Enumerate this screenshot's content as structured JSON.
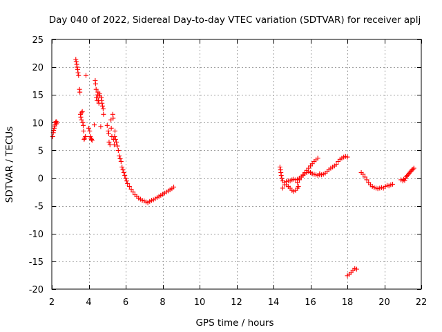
{
  "chart_data": {
    "type": "scatter",
    "title": "Day 040 of 2022, Sidereal Day-to-day VTEC variation (SDTVAR) for receiver aplj",
    "xlabel": "GPS time / hours",
    "ylabel": "SDTVAR / TECUs",
    "xlim": [
      2,
      22
    ],
    "ylim": [
      -20,
      25
    ],
    "xticks": [
      2,
      4,
      6,
      8,
      10,
      12,
      14,
      16,
      18,
      20,
      22
    ],
    "yticks": [
      -20,
      -15,
      -10,
      -5,
      0,
      5,
      10,
      15,
      20,
      25
    ],
    "grid": true,
    "marker": "+",
    "color": "#ff0000",
    "series": [
      {
        "name": "seg-early",
        "points": [
          [
            2.05,
            7.5
          ],
          [
            2.08,
            8.2
          ],
          [
            2.1,
            8.6
          ],
          [
            2.13,
            9.0
          ],
          [
            2.16,
            9.4
          ],
          [
            2.18,
            9.7
          ],
          [
            2.2,
            10.0
          ],
          [
            2.23,
            10.2
          ],
          [
            2.25,
            9.8
          ],
          [
            2.28,
            10.1
          ]
        ]
      },
      {
        "name": "seg-scatter-3-4",
        "points": [
          [
            3.3,
            21.4
          ],
          [
            3.32,
            21.0
          ],
          [
            3.35,
            20.5
          ],
          [
            3.37,
            20.0
          ],
          [
            3.4,
            19.6
          ],
          [
            3.42,
            19.0
          ],
          [
            3.45,
            18.5
          ],
          [
            3.5,
            16.0
          ],
          [
            3.52,
            15.5
          ],
          [
            3.55,
            11.5
          ],
          [
            3.57,
            11.0
          ],
          [
            3.6,
            10.5
          ],
          [
            3.62,
            11.8
          ],
          [
            3.65,
            12.0
          ],
          [
            3.68,
            10.0
          ],
          [
            3.7,
            9.5
          ],
          [
            3.72,
            8.5
          ],
          [
            3.75,
            7.0
          ],
          [
            3.78,
            7.2
          ],
          [
            3.82,
            7.5
          ],
          [
            3.85,
            18.5
          ],
          [
            4.0,
            9.0
          ],
          [
            4.05,
            8.5
          ],
          [
            4.08,
            7.5
          ],
          [
            4.12,
            7.2
          ],
          [
            4.15,
            7.0
          ],
          [
            4.18,
            6.8
          ]
        ]
      },
      {
        "name": "seg-scatter-4-5",
        "points": [
          [
            4.3,
            9.6
          ],
          [
            4.35,
            17.6
          ],
          [
            4.37,
            17.0
          ],
          [
            4.4,
            16.0
          ],
          [
            4.42,
            14.5
          ],
          [
            4.45,
            14.0
          ],
          [
            4.48,
            15.0
          ],
          [
            4.5,
            15.5
          ],
          [
            4.52,
            14.0
          ],
          [
            4.55,
            13.5
          ],
          [
            4.58,
            15.2
          ],
          [
            4.6,
            14.8
          ],
          [
            4.65,
            9.3
          ],
          [
            4.68,
            14.5
          ],
          [
            4.7,
            14.0
          ],
          [
            4.72,
            13.5
          ],
          [
            4.75,
            13.0
          ],
          [
            4.78,
            12.5
          ],
          [
            4.8,
            11.5
          ]
        ]
      },
      {
        "name": "seg-descent-5-7",
        "points": [
          [
            5.0,
            9.5
          ],
          [
            5.05,
            8.5
          ],
          [
            5.08,
            8.0
          ],
          [
            5.1,
            6.5
          ],
          [
            5.15,
            6.0
          ],
          [
            5.2,
            10.5
          ],
          [
            5.22,
            9.0
          ],
          [
            5.25,
            7.5
          ],
          [
            5.3,
            11.5
          ],
          [
            5.32,
            10.8
          ],
          [
            5.35,
            7.0
          ],
          [
            5.38,
            6.0
          ],
          [
            5.4,
            7.5
          ],
          [
            5.42,
            8.5
          ],
          [
            5.45,
            7.0
          ],
          [
            5.5,
            6.5
          ],
          [
            5.55,
            5.8
          ],
          [
            5.6,
            5.0
          ],
          [
            5.65,
            4.0
          ],
          [
            5.7,
            3.5
          ],
          [
            5.75,
            3.0
          ],
          [
            5.8,
            2.0
          ],
          [
            5.85,
            1.5
          ],
          [
            5.9,
            1.0
          ],
          [
            5.95,
            0.5
          ],
          [
            6.0,
            0.0
          ],
          [
            6.05,
            -0.5
          ],
          [
            6.1,
            -1.0
          ],
          [
            6.2,
            -1.5
          ],
          [
            6.3,
            -2.0
          ],
          [
            6.4,
            -2.5
          ],
          [
            6.5,
            -3.0
          ],
          [
            6.6,
            -3.3
          ],
          [
            6.7,
            -3.6
          ],
          [
            6.8,
            -3.8
          ],
          [
            6.9,
            -4.0
          ],
          [
            7.0,
            -4.1
          ],
          [
            7.1,
            -4.3
          ],
          [
            7.2,
            -4.4
          ]
        ]
      },
      {
        "name": "seg-rise-7-8.6",
        "points": [
          [
            7.3,
            -4.2
          ],
          [
            7.4,
            -4.0
          ],
          [
            7.5,
            -3.9
          ],
          [
            7.6,
            -3.7
          ],
          [
            7.7,
            -3.5
          ],
          [
            7.8,
            -3.3
          ],
          [
            7.9,
            -3.1
          ],
          [
            8.0,
            -2.9
          ],
          [
            8.1,
            -2.7
          ],
          [
            8.2,
            -2.5
          ],
          [
            8.3,
            -2.3
          ],
          [
            8.4,
            -2.1
          ],
          [
            8.5,
            -1.9
          ],
          [
            8.6,
            -1.6
          ]
        ]
      },
      {
        "name": "seg-14-15",
        "points": [
          [
            14.35,
            2.0
          ],
          [
            14.38,
            1.5
          ],
          [
            14.4,
            1.0
          ],
          [
            14.42,
            0.5
          ],
          [
            14.45,
            0.0
          ],
          [
            14.5,
            -0.5
          ],
          [
            14.6,
            -0.8
          ],
          [
            14.7,
            -1.2
          ],
          [
            14.8,
            -1.5
          ],
          [
            14.9,
            -1.8
          ],
          [
            15.0,
            -2.2
          ],
          [
            15.1,
            -2.4
          ],
          [
            15.2,
            -2.2
          ],
          [
            15.3,
            -1.8
          ],
          [
            15.35,
            -1.5
          ]
        ]
      },
      {
        "name": "seg-14.5-16.5",
        "points": [
          [
            14.5,
            -1.8
          ],
          [
            14.6,
            -1.2
          ],
          [
            14.7,
            -0.6
          ],
          [
            14.8,
            -0.5
          ],
          [
            14.9,
            -0.5
          ],
          [
            15.0,
            -0.3
          ],
          [
            15.1,
            -0.2
          ],
          [
            15.2,
            -0.3
          ],
          [
            15.3,
            -0.2
          ],
          [
            15.4,
            0.0
          ],
          [
            15.5,
            0.2
          ],
          [
            15.6,
            0.5
          ],
          [
            15.7,
            0.8
          ],
          [
            15.8,
            1.0
          ],
          [
            15.9,
            1.2
          ],
          [
            16.0,
            1.0
          ],
          [
            16.1,
            0.8
          ],
          [
            16.2,
            0.7
          ],
          [
            16.3,
            0.6
          ],
          [
            16.4,
            0.5
          ],
          [
            16.5,
            0.6
          ]
        ]
      },
      {
        "name": "seg-15-16.5-high",
        "points": [
          [
            15.3,
            -0.8
          ],
          [
            15.4,
            -0.3
          ],
          [
            15.5,
            0.2
          ],
          [
            15.6,
            0.6
          ],
          [
            15.7,
            1.0
          ],
          [
            15.8,
            1.4
          ],
          [
            15.9,
            1.8
          ],
          [
            16.0,
            2.2
          ],
          [
            16.1,
            2.6
          ],
          [
            16.2,
            3.0
          ],
          [
            16.3,
            3.3
          ],
          [
            16.4,
            3.6
          ]
        ]
      },
      {
        "name": "seg-16.5-18",
        "points": [
          [
            16.5,
            0.8
          ],
          [
            16.6,
            0.6
          ],
          [
            16.7,
            0.7
          ],
          [
            16.8,
            0.9
          ],
          [
            16.9,
            1.2
          ],
          [
            17.0,
            1.5
          ],
          [
            17.1,
            1.8
          ],
          [
            17.2,
            2.0
          ],
          [
            17.3,
            2.2
          ],
          [
            17.4,
            2.5
          ],
          [
            17.5,
            3.0
          ],
          [
            17.6,
            3.4
          ],
          [
            17.7,
            3.6
          ],
          [
            17.8,
            3.8
          ],
          [
            17.9,
            3.9
          ],
          [
            18.0,
            3.8
          ]
        ]
      },
      {
        "name": "seg-18-low",
        "points": [
          [
            18.0,
            -17.6
          ],
          [
            18.1,
            -17.3
          ],
          [
            18.2,
            -17.0
          ],
          [
            18.3,
            -16.6
          ],
          [
            18.4,
            -16.3
          ],
          [
            18.5,
            -16.4
          ]
        ]
      },
      {
        "name": "seg-18.7-20.5",
        "points": [
          [
            18.75,
            1.0
          ],
          [
            18.85,
            0.7
          ],
          [
            18.95,
            0.2
          ],
          [
            19.05,
            -0.3
          ],
          [
            19.15,
            -0.8
          ],
          [
            19.25,
            -1.2
          ],
          [
            19.35,
            -1.5
          ],
          [
            19.45,
            -1.7
          ],
          [
            19.55,
            -1.8
          ],
          [
            19.65,
            -1.9
          ],
          [
            19.75,
            -1.8
          ],
          [
            19.85,
            -1.7
          ],
          [
            19.95,
            -1.8
          ],
          [
            20.05,
            -1.5
          ],
          [
            20.15,
            -1.3
          ],
          [
            20.25,
            -1.4
          ],
          [
            20.35,
            -1.2
          ],
          [
            20.45,
            -1.1
          ]
        ]
      },
      {
        "name": "seg-20.9-21.6",
        "points": [
          [
            20.9,
            -0.3
          ],
          [
            21.0,
            -0.5
          ],
          [
            21.05,
            -0.2
          ],
          [
            21.1,
            -0.4
          ],
          [
            21.15,
            0.0
          ],
          [
            21.2,
            0.3
          ],
          [
            21.25,
            0.5
          ],
          [
            21.3,
            0.7
          ],
          [
            21.35,
            0.9
          ],
          [
            21.4,
            1.1
          ],
          [
            21.45,
            1.3
          ],
          [
            21.5,
            1.5
          ],
          [
            21.55,
            1.6
          ],
          [
            21.6,
            1.8
          ]
        ]
      }
    ]
  }
}
